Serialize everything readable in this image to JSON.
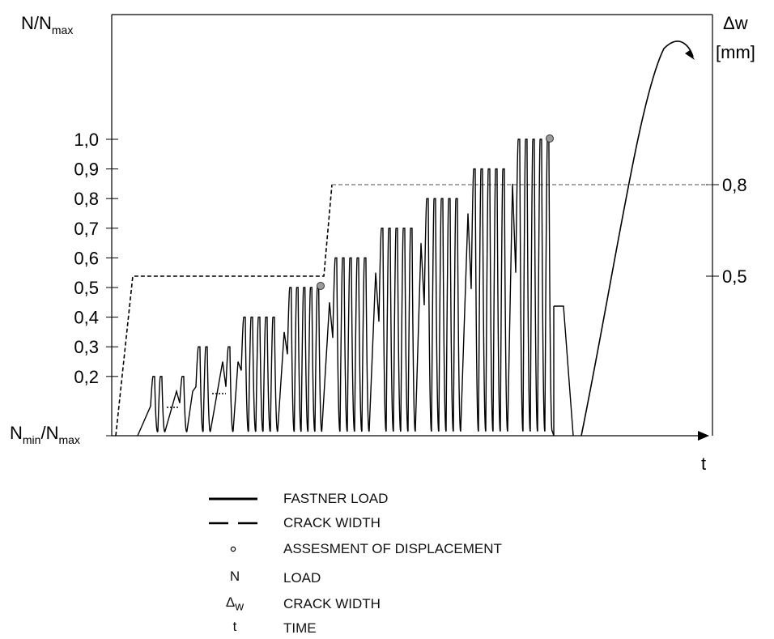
{
  "chart_data": {
    "type": "line",
    "title": "",
    "y_left_title": "N/N",
    "y_left_title_sub": "max",
    "y_left_min_label": "N",
    "y_left_min_label_sub1": "min",
    "y_left_min_label_mid": "/N",
    "y_left_min_label_sub2": "max",
    "y_left_ticks": [
      "1,0",
      "0,9",
      "0,8",
      "0,7",
      "0,6",
      "0,5",
      "0,4",
      "0,3",
      "0,2"
    ],
    "y_left_tick_values": [
      1.0,
      0.9,
      0.8,
      0.7,
      0.6,
      0.5,
      0.4,
      0.3,
      0.2
    ],
    "y_right_title_1": "Δw",
    "y_right_title_2": "[mm]",
    "y_right_ticks": [
      "0,8",
      "0,5"
    ],
    "y_right_tick_values": [
      0.8,
      0.5
    ],
    "x_label": "t",
    "ylim": [
      0,
      1.3
    ],
    "nmin_ratio": 0.0,
    "load_cycles": [
      {
        "level": 0.2,
        "cycles": 2
      },
      {
        "level": 0.2,
        "cycles": 1
      },
      {
        "level": 0.3,
        "cycles": 2
      },
      {
        "level": 0.3,
        "cycles": 1
      },
      {
        "level": 0.4,
        "cycles": 5
      },
      {
        "level": 0.5,
        "cycles": 5
      },
      {
        "level": 0.6,
        "cycles": 5
      },
      {
        "level": 0.7,
        "cycles": 5
      },
      {
        "level": 0.8,
        "cycles": 5
      },
      {
        "level": 0.9,
        "cycles": 5
      },
      {
        "level": 1.0,
        "cycles": 5
      }
    ],
    "crack_width_levels": [
      0.5,
      0.8
    ],
    "assessment_points": [
      {
        "load": 0.5,
        "after_block": "0,5"
      },
      {
        "load": 1.0,
        "after_block": "1,0"
      }
    ]
  },
  "legend": [
    {
      "symbol": "solid-line",
      "label": "FASTNER LOAD"
    },
    {
      "symbol": "dashed-line",
      "label": "CRACK WIDTH"
    },
    {
      "symbol": "dot",
      "label": "ASSESMENT OF DISPLACEMENT"
    },
    {
      "symbol": "text",
      "symbol_text": "N",
      "label": "LOAD"
    },
    {
      "symbol": "text",
      "symbol_text": "Δ",
      "symbol_sub": "w",
      "label": "CRACK WIDTH"
    },
    {
      "symbol": "text",
      "symbol_text": "t",
      "label": "TIME"
    }
  ],
  "colors": {
    "axis": "#000000",
    "load_line": "#000000",
    "crack_line": "#000000",
    "crack_line_upper": "#888888",
    "marker_fill": "#9a9a9a"
  }
}
